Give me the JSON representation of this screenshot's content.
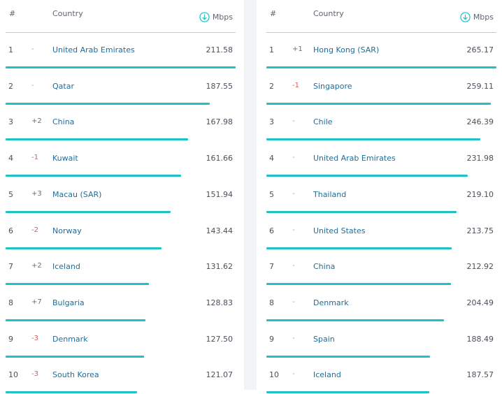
{
  "headers": {
    "rank": "#",
    "country": "Country",
    "unit": "Mbps"
  },
  "chart_data": [
    {
      "type": "table",
      "title": "",
      "unit": "Mbps",
      "xlim": [
        0,
        211.58
      ],
      "rows": [
        {
          "rank": "1",
          "change": "-",
          "country": "United Arab Emirates",
          "speed": 211.58
        },
        {
          "rank": "2",
          "change": "-",
          "country": "Qatar",
          "speed": 187.55
        },
        {
          "rank": "3",
          "change": "+2",
          "country": "China",
          "speed": 167.98
        },
        {
          "rank": "4",
          "change": "-1",
          "country": "Kuwait",
          "speed": 161.66
        },
        {
          "rank": "5",
          "change": "+3",
          "country": "Macau (SAR)",
          "speed": 151.94
        },
        {
          "rank": "6",
          "change": "-2",
          "country": "Norway",
          "speed": 143.44
        },
        {
          "rank": "7",
          "change": "+2",
          "country": "Iceland",
          "speed": 131.62
        },
        {
          "rank": "8",
          "change": "+7",
          "country": "Bulgaria",
          "speed": 128.83
        },
        {
          "rank": "9",
          "change": "-3",
          "country": "Denmark",
          "speed": 127.5
        },
        {
          "rank": "10",
          "change": "-3",
          "country": "South Korea",
          "speed": 121.07
        }
      ]
    },
    {
      "type": "table",
      "title": "",
      "unit": "Mbps",
      "xlim": [
        0,
        265.17
      ],
      "rows": [
        {
          "rank": "1",
          "change": "+1",
          "country": "Hong Kong (SAR)",
          "speed": 265.17
        },
        {
          "rank": "2",
          "change": "-1",
          "country": "Singapore",
          "speed": 259.11
        },
        {
          "rank": "3",
          "change": "-",
          "country": "Chile",
          "speed": 246.39
        },
        {
          "rank": "4",
          "change": "-",
          "country": "United Arab Emirates",
          "speed": 231.98
        },
        {
          "rank": "5",
          "change": "-",
          "country": "Thailand",
          "speed": 219.1
        },
        {
          "rank": "6",
          "change": "-",
          "country": "United States",
          "speed": 213.75
        },
        {
          "rank": "7",
          "change": "-",
          "country": "China",
          "speed": 212.92
        },
        {
          "rank": "8",
          "change": "-",
          "country": "Denmark",
          "speed": 204.49
        },
        {
          "rank": "9",
          "change": "-",
          "country": "Spain",
          "speed": 188.49
        },
        {
          "rank": "10",
          "change": "-",
          "country": "Iceland",
          "speed": 187.57
        }
      ]
    }
  ],
  "colors": {
    "bar": "#1ec1c8",
    "country": "#1f6c98",
    "down": "#e05656",
    "up": "#6a6f78",
    "same": "#a3a7ae"
  }
}
